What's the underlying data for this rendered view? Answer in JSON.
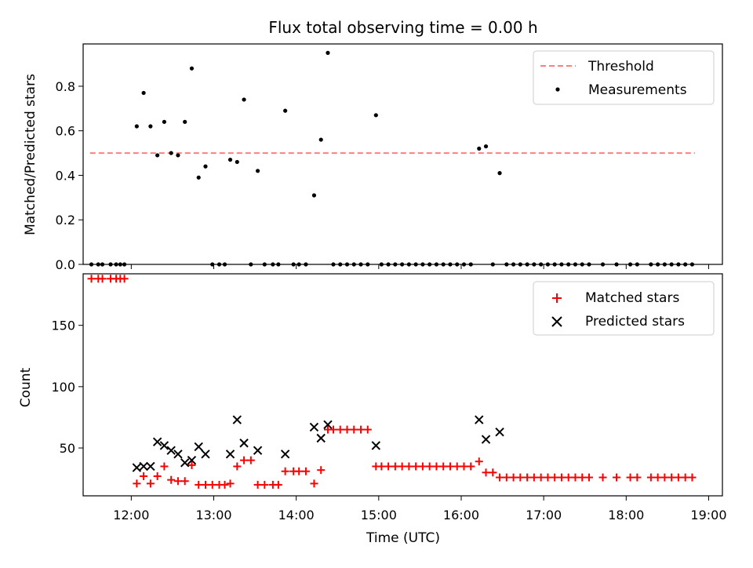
{
  "title": "Flux total observing time = 0.00 h",
  "colors": {
    "threshold": "#ff7f7f",
    "measurements": "#000000",
    "matched": "#ff0000",
    "predicted": "#000000"
  },
  "chart_data": [
    {
      "type": "scatter",
      "title": "Flux total observing time = 0.00 h",
      "xlabel": "",
      "ylabel": "Matched/Predicted stars",
      "x_axis": "time",
      "xlim": [
        "11:25",
        "19:10"
      ],
      "ylim": [
        0,
        0.99
      ],
      "yticks": [
        0.0,
        0.2,
        0.4,
        0.6,
        0.8
      ],
      "ytick_labels": [
        "0.0",
        "0.2",
        "0.4",
        "0.6",
        "0.8"
      ],
      "legend": {
        "placement": "top-right",
        "entries": [
          "Threshold",
          "Measurements"
        ]
      },
      "grid": false,
      "series": [
        {
          "name": "Threshold",
          "kind": "line",
          "style": "dashed",
          "x": [
            "11:30",
            "18:50"
          ],
          "y": [
            0.5,
            0.5
          ]
        },
        {
          "name": "Measurements",
          "kind": "scatter",
          "points": [
            [
              "11:31",
              0
            ],
            [
              "11:36",
              0
            ],
            [
              "11:39",
              0
            ],
            [
              "11:45",
              0
            ],
            [
              "11:49",
              0
            ],
            [
              "11:52",
              0
            ],
            [
              "11:55",
              0
            ],
            [
              "12:04",
              0.62
            ],
            [
              "12:09",
              0.77
            ],
            [
              "12:14",
              0.62
            ],
            [
              "12:19",
              0.49
            ],
            [
              "12:24",
              0.64
            ],
            [
              "12:29",
              0.5
            ],
            [
              "12:34",
              0.49
            ],
            [
              "12:39",
              0.64
            ],
            [
              "12:44",
              0.88
            ],
            [
              "12:49",
              0.39
            ],
            [
              "12:54",
              0.44
            ],
            [
              "12:59",
              0
            ],
            [
              "13:04",
              0
            ],
            [
              "13:08",
              0
            ],
            [
              "13:12",
              0.47
            ],
            [
              "13:17",
              0.46
            ],
            [
              "13:22",
              0.74
            ],
            [
              "13:27",
              0
            ],
            [
              "13:32",
              0.42
            ],
            [
              "13:37",
              0
            ],
            [
              "13:43",
              0
            ],
            [
              "13:47",
              0
            ],
            [
              "13:52",
              0.69
            ],
            [
              "13:58",
              0
            ],
            [
              "14:02",
              0
            ],
            [
              "14:07",
              0
            ],
            [
              "14:13",
              0.31
            ],
            [
              "14:18",
              0.56
            ],
            [
              "14:23",
              0.95
            ],
            [
              "14:27",
              0
            ],
            [
              "14:32",
              0
            ],
            [
              "14:37",
              0
            ],
            [
              "14:42",
              0
            ],
            [
              "14:47",
              0
            ],
            [
              "14:52",
              0
            ],
            [
              "14:58",
              0.67
            ],
            [
              "15:02",
              0
            ],
            [
              "15:07",
              0
            ],
            [
              "15:12",
              0
            ],
            [
              "15:17",
              0
            ],
            [
              "15:22",
              0
            ],
            [
              "15:27",
              0
            ],
            [
              "15:32",
              0
            ],
            [
              "15:37",
              0
            ],
            [
              "15:42",
              0
            ],
            [
              "15:47",
              0
            ],
            [
              "15:52",
              0
            ],
            [
              "15:57",
              0
            ],
            [
              "16:02",
              0
            ],
            [
              "16:07",
              0
            ],
            [
              "16:13",
              0.52
            ],
            [
              "16:18",
              0.53
            ],
            [
              "16:23",
              0
            ],
            [
              "16:28",
              0.41
            ],
            [
              "16:33",
              0
            ],
            [
              "16:38",
              0
            ],
            [
              "16:43",
              0
            ],
            [
              "16:48",
              0
            ],
            [
              "16:53",
              0
            ],
            [
              "16:58",
              0
            ],
            [
              "17:03",
              0
            ],
            [
              "17:08",
              0
            ],
            [
              "17:13",
              0
            ],
            [
              "17:18",
              0
            ],
            [
              "17:23",
              0
            ],
            [
              "17:28",
              0
            ],
            [
              "17:33",
              0
            ],
            [
              "17:43",
              0
            ],
            [
              "17:53",
              0
            ],
            [
              "18:03",
              0
            ],
            [
              "18:08",
              0
            ],
            [
              "18:18",
              0
            ],
            [
              "18:23",
              0
            ],
            [
              "18:28",
              0
            ],
            [
              "18:33",
              0
            ],
            [
              "18:38",
              0
            ],
            [
              "18:43",
              0
            ],
            [
              "18:48",
              0
            ]
          ]
        }
      ]
    },
    {
      "type": "scatter",
      "title": "",
      "xlabel": "Time (UTC)",
      "ylabel": "Count",
      "x_axis": "time",
      "xlim": [
        "11:25",
        "19:10"
      ],
      "ylim": [
        11,
        192
      ],
      "yticks": [
        50,
        100,
        150
      ],
      "ytick_labels": [
        "50",
        "100",
        "150"
      ],
      "xticks": [
        "12:00",
        "13:00",
        "14:00",
        "15:00",
        "16:00",
        "17:00",
        "18:00",
        "19:00"
      ],
      "xtick_labels": [
        "12:00",
        "13:00",
        "14:00",
        "15:00",
        "16:00",
        "17:00",
        "18:00",
        "19:00"
      ],
      "legend": {
        "placement": "top-right",
        "entries": [
          "Matched stars",
          "Predicted stars"
        ]
      },
      "grid": false,
      "series": [
        {
          "name": "Matched stars",
          "marker": "plus",
          "points": [
            [
              "11:31",
              188
            ],
            [
              "11:36",
              188
            ],
            [
              "11:39",
              188
            ],
            [
              "11:45",
              188
            ],
            [
              "11:49",
              188
            ],
            [
              "11:52",
              188
            ],
            [
              "11:55",
              188
            ],
            [
              "12:04",
              21
            ],
            [
              "12:09",
              27
            ],
            [
              "12:14",
              21
            ],
            [
              "12:19",
              27
            ],
            [
              "12:24",
              35
            ],
            [
              "12:29",
              24
            ],
            [
              "12:34",
              23
            ],
            [
              "12:39",
              23
            ],
            [
              "12:44",
              36
            ],
            [
              "12:49",
              20
            ],
            [
              "12:54",
              20
            ],
            [
              "12:59",
              20
            ],
            [
              "13:04",
              20
            ],
            [
              "13:08",
              20
            ],
            [
              "13:12",
              21
            ],
            [
              "13:17",
              35
            ],
            [
              "13:22",
              40
            ],
            [
              "13:27",
              40
            ],
            [
              "13:32",
              20
            ],
            [
              "13:37",
              20
            ],
            [
              "13:43",
              20
            ],
            [
              "13:47",
              20
            ],
            [
              "13:52",
              31
            ],
            [
              "13:58",
              31
            ],
            [
              "14:02",
              31
            ],
            [
              "14:07",
              31
            ],
            [
              "14:13",
              21
            ],
            [
              "14:18",
              32
            ],
            [
              "14:23",
              65
            ],
            [
              "14:27",
              65
            ],
            [
              "14:32",
              65
            ],
            [
              "14:37",
              65
            ],
            [
              "14:42",
              65
            ],
            [
              "14:47",
              65
            ],
            [
              "14:52",
              65
            ],
            [
              "14:58",
              35
            ],
            [
              "15:02",
              35
            ],
            [
              "15:07",
              35
            ],
            [
              "15:12",
              35
            ],
            [
              "15:17",
              35
            ],
            [
              "15:22",
              35
            ],
            [
              "15:27",
              35
            ],
            [
              "15:32",
              35
            ],
            [
              "15:37",
              35
            ],
            [
              "15:42",
              35
            ],
            [
              "15:47",
              35
            ],
            [
              "15:52",
              35
            ],
            [
              "15:57",
              35
            ],
            [
              "16:02",
              35
            ],
            [
              "16:07",
              35
            ],
            [
              "16:13",
              39
            ],
            [
              "16:18",
              30
            ],
            [
              "16:23",
              30
            ],
            [
              "16:28",
              26
            ],
            [
              "16:33",
              26
            ],
            [
              "16:38",
              26
            ],
            [
              "16:43",
              26
            ],
            [
              "16:48",
              26
            ],
            [
              "16:53",
              26
            ],
            [
              "16:58",
              26
            ],
            [
              "17:03",
              26
            ],
            [
              "17:08",
              26
            ],
            [
              "17:13",
              26
            ],
            [
              "17:18",
              26
            ],
            [
              "17:23",
              26
            ],
            [
              "17:28",
              26
            ],
            [
              "17:33",
              26
            ],
            [
              "17:43",
              26
            ],
            [
              "17:53",
              26
            ],
            [
              "18:03",
              26
            ],
            [
              "18:08",
              26
            ],
            [
              "18:18",
              26
            ],
            [
              "18:23",
              26
            ],
            [
              "18:28",
              26
            ],
            [
              "18:33",
              26
            ],
            [
              "18:38",
              26
            ],
            [
              "18:43",
              26
            ],
            [
              "18:48",
              26
            ]
          ]
        },
        {
          "name": "Predicted stars",
          "marker": "x",
          "points": [
            [
              "12:04",
              34
            ],
            [
              "12:09",
              35
            ],
            [
              "12:14",
              35
            ],
            [
              "12:19",
              55
            ],
            [
              "12:24",
              52
            ],
            [
              "12:29",
              48
            ],
            [
              "12:34",
              45
            ],
            [
              "12:39",
              38
            ],
            [
              "12:44",
              40
            ],
            [
              "12:49",
              51
            ],
            [
              "12:54",
              45
            ],
            [
              "13:12",
              45
            ],
            [
              "13:17",
              73
            ],
            [
              "13:22",
              54
            ],
            [
              "13:32",
              48
            ],
            [
              "13:52",
              45
            ],
            [
              "14:13",
              67
            ],
            [
              "14:18",
              58
            ],
            [
              "14:23",
              69
            ],
            [
              "14:58",
              52
            ],
            [
              "16:13",
              73
            ],
            [
              "16:18",
              57
            ],
            [
              "16:28",
              63
            ]
          ]
        }
      ]
    }
  ]
}
